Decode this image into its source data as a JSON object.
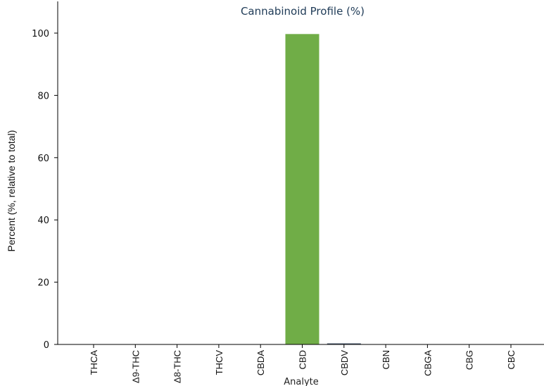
{
  "chart_data": {
    "type": "bar",
    "title": "Cannabinoid Profile (%)",
    "xlabel": "Analyte",
    "ylabel": "Percent (%, relative to total)",
    "categories": [
      "THCA",
      "Δ9-THC",
      "Δ8-THC",
      "THCV",
      "CBDA",
      "CBD",
      "CBDV",
      "CBN",
      "CBGA",
      "CBG",
      "CBC"
    ],
    "values": [
      0,
      0,
      0,
      0,
      0,
      99.7,
      0.3,
      0,
      0,
      0,
      0
    ],
    "bar_colors": [
      "#70ad47",
      "#70ad47",
      "#70ad47",
      "#70ad47",
      "#70ad47",
      "#70ad47",
      "#44546a",
      "#70ad47",
      "#70ad47",
      "#70ad47",
      "#70ad47"
    ],
    "ylim": [
      0,
      100
    ],
    "yticks": [
      0,
      20,
      40,
      60,
      80,
      100
    ],
    "grid": false,
    "legend": false
  }
}
